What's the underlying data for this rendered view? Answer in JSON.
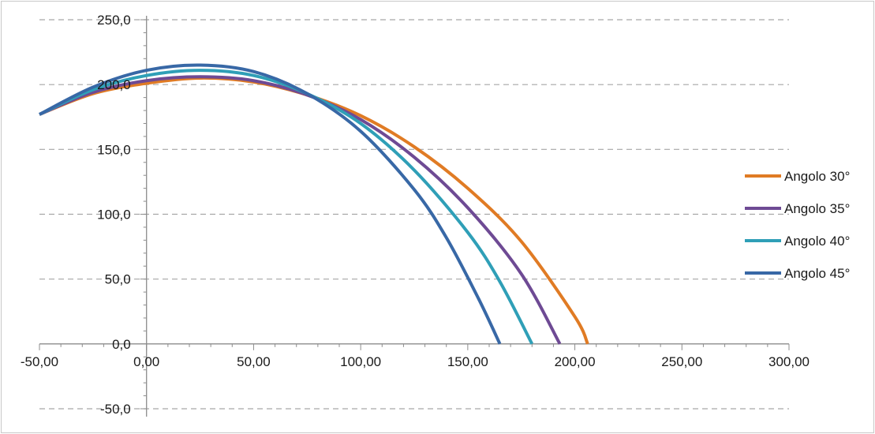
{
  "chart_data": {
    "type": "line",
    "title": "",
    "xlabel": "",
    "ylabel": "",
    "xlim": [
      -50,
      300
    ],
    "ylim": [
      -50,
      250
    ],
    "x_ticks": [
      -50,
      0,
      50,
      100,
      150,
      200,
      250,
      300
    ],
    "x_tick_labels": [
      "-50,00",
      "0,00",
      "50,00",
      "100,00",
      "150,00",
      "200,00",
      "250,00",
      "300,00"
    ],
    "y_ticks": [
      -50,
      0,
      50,
      100,
      150,
      200,
      250
    ],
    "y_tick_labels": [
      "-50,0",
      "0,0",
      "50,0",
      "100,0",
      "150,0",
      "200,0",
      "250,0"
    ],
    "grid": "horizontal dashed",
    "legend_position": "right",
    "series": [
      {
        "name": "Angolo 30°",
        "color": "#e07b24",
        "x": [
          -50,
          -25,
          0,
          25,
          50,
          75,
          100,
          125,
          150,
          175,
          200,
          206
        ],
        "y": [
          177,
          193,
          201,
          205,
          202,
          192,
          176,
          152,
          120,
          79,
          21,
          0
        ]
      },
      {
        "name": "Angolo 35°",
        "color": "#6e4a94",
        "x": [
          -50,
          -25,
          0,
          25,
          50,
          75,
          100,
          125,
          150,
          175,
          193
        ],
        "y": [
          177,
          194,
          203,
          206,
          203,
          192,
          173,
          144,
          105,
          54,
          0
        ]
      },
      {
        "name": "Angolo 40°",
        "color": "#2f9fb7",
        "x": [
          -50,
          -25,
          0,
          25,
          50,
          75,
          100,
          125,
          150,
          165,
          180
        ],
        "y": [
          177,
          196,
          207,
          211,
          207,
          193,
          170,
          134,
          86,
          48,
          0
        ]
      },
      {
        "name": "Angolo 45°",
        "color": "#3868a6",
        "x": [
          -50,
          -25,
          0,
          25,
          50,
          75,
          100,
          125,
          140,
          155,
          165
        ],
        "y": [
          177,
          198,
          211,
          215,
          210,
          193,
          164,
          119,
          82,
          35,
          0
        ]
      }
    ]
  }
}
